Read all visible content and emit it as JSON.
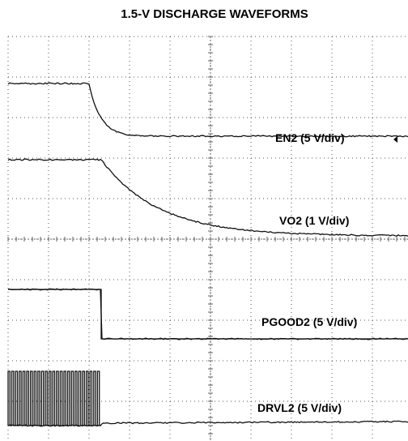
{
  "title": "1.5-V DISCHARGE WAVEFORMS",
  "traces": [
    {
      "label": "EN2 (5 V/div)"
    },
    {
      "label": "VO2 (1 V/div)"
    },
    {
      "label": "PGOOD2 (5 V/div)"
    },
    {
      "label": "DRVL2 (5 V/div)"
    }
  ]
}
